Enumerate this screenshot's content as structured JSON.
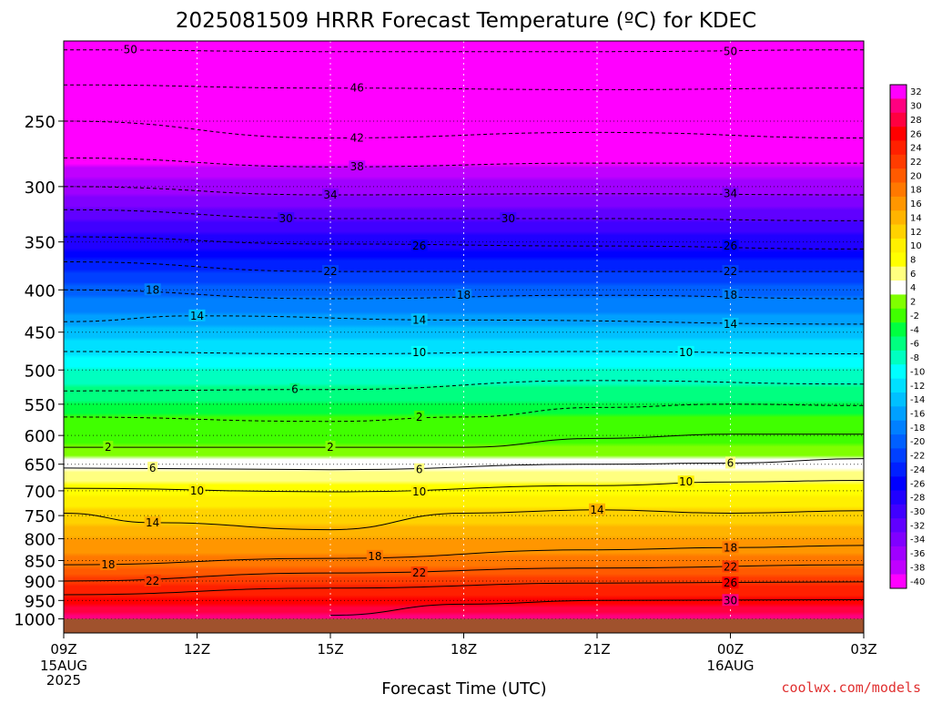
{
  "chart_data": {
    "type": "heatmap",
    "title": "2025081509 HRRR Forecast Temperature (ºC) for KDEC",
    "xlabel": "Forecast Time (UTC)",
    "ylabel": "",
    "credit": "coolwx.com/models",
    "x_ticks": [
      {
        "hour": 0,
        "label": "09Z",
        "sub": [
          "15AUG",
          "2025"
        ]
      },
      {
        "hour": 3,
        "label": "12Z",
        "sub": []
      },
      {
        "hour": 6,
        "label": "15Z",
        "sub": []
      },
      {
        "hour": 9,
        "label": "18Z",
        "sub": []
      },
      {
        "hour": 12,
        "label": "21Z",
        "sub": []
      },
      {
        "hour": 15,
        "label": "00Z",
        "sub": [
          "16AUG"
        ]
      },
      {
        "hour": 18,
        "label": "03Z",
        "sub": []
      }
    ],
    "xlim": [
      0,
      18
    ],
    "y_ticks": [
      250,
      300,
      350,
      400,
      450,
      500,
      550,
      600,
      650,
      700,
      750,
      800,
      850,
      900,
      950,
      1000
    ],
    "ylim": [
      1040,
      200
    ],
    "y_scale": "log-pressure",
    "grid": true,
    "ground_color": "#a0522d",
    "colorbar": {
      "levels": [
        32,
        30,
        28,
        26,
        24,
        22,
        20,
        18,
        16,
        14,
        12,
        10,
        8,
        6,
        4,
        2,
        -2,
        -4,
        -6,
        -8,
        -10,
        -12,
        -14,
        -16,
        -18,
        -20,
        -22,
        -24,
        -26,
        -28,
        -30,
        -32,
        -34,
        -36,
        -38,
        -40
      ],
      "colors": [
        "#ff00ff",
        "#ff0080",
        "#ff0040",
        "#ff0000",
        "#ff2000",
        "#ff3c00",
        "#ff5a00",
        "#ff7800",
        "#ff9600",
        "#ffb400",
        "#ffd200",
        "#fff000",
        "#ffff00",
        "#ffff80",
        "#ffffff",
        "#80ff00",
        "#40ff00",
        "#00ff40",
        "#00ff80",
        "#00ffc0",
        "#00ffff",
        "#00e0ff",
        "#00c0ff",
        "#00a0ff",
        "#0080ff",
        "#0060ff",
        "#0040ff",
        "#0020ff",
        "#0000ff",
        "#2000ff",
        "#4000ff",
        "#6000ff",
        "#8000ff",
        "#a000ff",
        "#c000ff",
        "#ff00ff"
      ]
    },
    "profile": [
      {
        "p": 200,
        "t": -56
      },
      {
        "p": 250,
        "t": -44
      },
      {
        "p": 300,
        "t": -35
      },
      {
        "p": 350,
        "t": -27
      },
      {
        "p": 400,
        "t": -19
      },
      {
        "p": 450,
        "t": -13
      },
      {
        "p": 500,
        "t": -8
      },
      {
        "p": 550,
        "t": -4
      },
      {
        "p": 600,
        "t": 1
      },
      {
        "p": 650,
        "t": 5
      },
      {
        "p": 700,
        "t": 9
      },
      {
        "p": 750,
        "t": 13
      },
      {
        "p": 800,
        "t": 16
      },
      {
        "p": 850,
        "t": 19
      },
      {
        "p": 900,
        "t": 23
      },
      {
        "p": 950,
        "t": 27
      },
      {
        "p": 1000,
        "t": 31
      }
    ],
    "contours": [
      {
        "value": -50,
        "style": "dashed",
        "points": [
          [
            0,
            205
          ],
          [
            6,
            206
          ],
          [
            12,
            206
          ],
          [
            18,
            205
          ]
        ],
        "labels": [
          [
            1.5,
            205
          ],
          [
            15,
            206
          ]
        ]
      },
      {
        "value": -46,
        "style": "dashed",
        "points": [
          [
            0,
            226
          ],
          [
            6,
            228
          ],
          [
            12,
            229
          ],
          [
            18,
            228
          ]
        ],
        "labels": [
          [
            6.6,
            228
          ]
        ]
      },
      {
        "value": -42,
        "style": "dashed",
        "points": [
          [
            0,
            250
          ],
          [
            6,
            262
          ],
          [
            12,
            258
          ],
          [
            18,
            262
          ]
        ],
        "labels": [
          [
            6.6,
            262
          ]
        ]
      },
      {
        "value": -38,
        "style": "dashed",
        "points": [
          [
            0,
            277
          ],
          [
            6,
            284
          ],
          [
            12,
            281
          ],
          [
            18,
            281
          ]
        ],
        "labels": [
          [
            6.6,
            284
          ]
        ]
      },
      {
        "value": -34,
        "style": "dashed",
        "points": [
          [
            0,
            300
          ],
          [
            6,
            307
          ],
          [
            12,
            306
          ],
          [
            18,
            307
          ]
        ],
        "labels": [
          [
            6.0,
            307
          ],
          [
            15,
            306
          ]
        ]
      },
      {
        "value": -30,
        "style": "dashed",
        "points": [
          [
            0,
            320
          ],
          [
            6,
            328
          ],
          [
            12,
            328
          ],
          [
            18,
            330
          ]
        ],
        "labels": [
          [
            5.0,
            328
          ],
          [
            10,
            328
          ]
        ]
      },
      {
        "value": -26,
        "style": "dashed",
        "points": [
          [
            0,
            345
          ],
          [
            6,
            352
          ],
          [
            12,
            354
          ],
          [
            18,
            357
          ]
        ],
        "labels": [
          [
            8.0,
            354
          ],
          [
            15,
            354
          ]
        ]
      },
      {
        "value": -22,
        "style": "dashed",
        "points": [
          [
            0,
            370
          ],
          [
            6,
            380
          ],
          [
            12,
            380
          ],
          [
            18,
            380
          ]
        ],
        "labels": [
          [
            6.0,
            380
          ],
          [
            15,
            380
          ]
        ]
      },
      {
        "value": -18,
        "style": "dashed",
        "points": [
          [
            0,
            400
          ],
          [
            6,
            410
          ],
          [
            12,
            406
          ],
          [
            18,
            410
          ]
        ],
        "labels": [
          [
            2.0,
            400
          ],
          [
            9,
            406
          ],
          [
            15,
            406
          ]
        ]
      },
      {
        "value": -14,
        "style": "dashed",
        "points": [
          [
            0,
            437
          ],
          [
            3,
            430
          ],
          [
            9,
            435
          ],
          [
            18,
            440
          ]
        ],
        "labels": [
          [
            3.0,
            430
          ],
          [
            8,
            435
          ],
          [
            15,
            440
          ]
        ]
      },
      {
        "value": -10,
        "style": "dashed",
        "points": [
          [
            0,
            475
          ],
          [
            6,
            478
          ],
          [
            12,
            475
          ],
          [
            18,
            478
          ]
        ],
        "labels": [
          [
            8.0,
            476
          ],
          [
            14,
            476
          ]
        ]
      },
      {
        "value": -6,
        "style": "dashed",
        "points": [
          [
            0,
            530
          ],
          [
            6,
            528
          ],
          [
            12,
            515
          ],
          [
            18,
            520
          ]
        ],
        "labels": [
          [
            5.2,
            528
          ]
        ]
      },
      {
        "value": -2,
        "style": "dashed",
        "points": [
          [
            0,
            570
          ],
          [
            6,
            577
          ],
          [
            9,
            570
          ],
          [
            12,
            555
          ],
          [
            15,
            550
          ],
          [
            18,
            552
          ]
        ],
        "labels": [
          [
            8.0,
            570
          ]
        ]
      },
      {
        "value": 2,
        "style": "solid",
        "points": [
          [
            0,
            620
          ],
          [
            6,
            620
          ],
          [
            9,
            620
          ],
          [
            12,
            605
          ],
          [
            15,
            598
          ],
          [
            18,
            598
          ]
        ],
        "labels": [
          [
            1.0,
            620
          ],
          [
            6,
            620
          ]
        ]
      },
      {
        "value": 6,
        "style": "solid",
        "points": [
          [
            0,
            657
          ],
          [
            6,
            660
          ],
          [
            12,
            650
          ],
          [
            15,
            648
          ],
          [
            18,
            640
          ]
        ],
        "labels": [
          [
            2.0,
            657
          ],
          [
            8,
            660
          ],
          [
            15,
            648
          ]
        ]
      },
      {
        "value": 10,
        "style": "solid",
        "points": [
          [
            0,
            695
          ],
          [
            6,
            702
          ],
          [
            12,
            690
          ],
          [
            15,
            683
          ],
          [
            18,
            680
          ]
        ],
        "labels": [
          [
            3.0,
            700
          ],
          [
            8,
            702
          ],
          [
            14,
            683
          ]
        ]
      },
      {
        "value": 14,
        "style": "solid",
        "points": [
          [
            0,
            745
          ],
          [
            2,
            765
          ],
          [
            6,
            780
          ],
          [
            9,
            745
          ],
          [
            12,
            738
          ],
          [
            15,
            745
          ],
          [
            18,
            740
          ]
        ],
        "labels": [
          [
            2.0,
            765
          ],
          [
            12,
            738
          ]
        ]
      },
      {
        "value": 18,
        "style": "solid",
        "points": [
          [
            0,
            860
          ],
          [
            6,
            845
          ],
          [
            12,
            825
          ],
          [
            15,
            820
          ],
          [
            18,
            815
          ]
        ],
        "labels": [
          [
            1.0,
            860
          ],
          [
            7,
            840
          ],
          [
            15,
            820
          ]
        ]
      },
      {
        "value": 22,
        "style": "solid",
        "points": [
          [
            0,
            900
          ],
          [
            6,
            880
          ],
          [
            12,
            868
          ],
          [
            18,
            860
          ]
        ],
        "labels": [
          [
            2.0,
            900
          ],
          [
            8,
            880
          ],
          [
            15,
            865
          ]
        ]
      },
      {
        "value": 26,
        "style": "solid",
        "points": [
          [
            0,
            935
          ],
          [
            6,
            918
          ],
          [
            12,
            905
          ],
          [
            18,
            902
          ]
        ],
        "labels": [
          [
            15,
            905
          ]
        ]
      },
      {
        "value": 30,
        "style": "solid",
        "points": [
          [
            6,
            990
          ],
          [
            9,
            960
          ],
          [
            12,
            950
          ],
          [
            18,
            948
          ]
        ],
        "labels": [
          [
            15,
            950
          ]
        ]
      }
    ]
  }
}
